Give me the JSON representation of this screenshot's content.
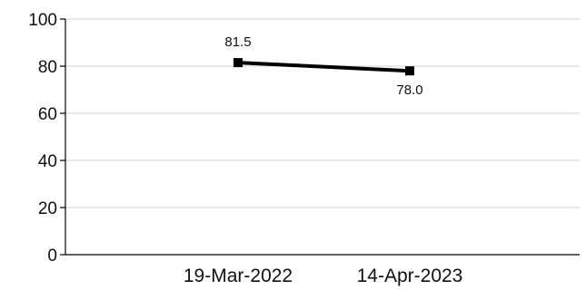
{
  "chart_data": {
    "type": "line",
    "categories": [
      "19-Mar-2022",
      "14-Apr-2023"
    ],
    "series": [
      {
        "values": [
          81.5,
          78.0
        ],
        "labels": [
          "81.5",
          "78.0"
        ]
      }
    ],
    "ylim": [
      0,
      100
    ],
    "yticks": [
      0,
      20,
      40,
      60,
      80,
      100
    ],
    "ytick_labels": [
      "0",
      "20",
      "40",
      "60",
      "80",
      "100"
    ],
    "grid": true,
    "line_color": "#000000",
    "grid_color": "#d9d9d9"
  }
}
